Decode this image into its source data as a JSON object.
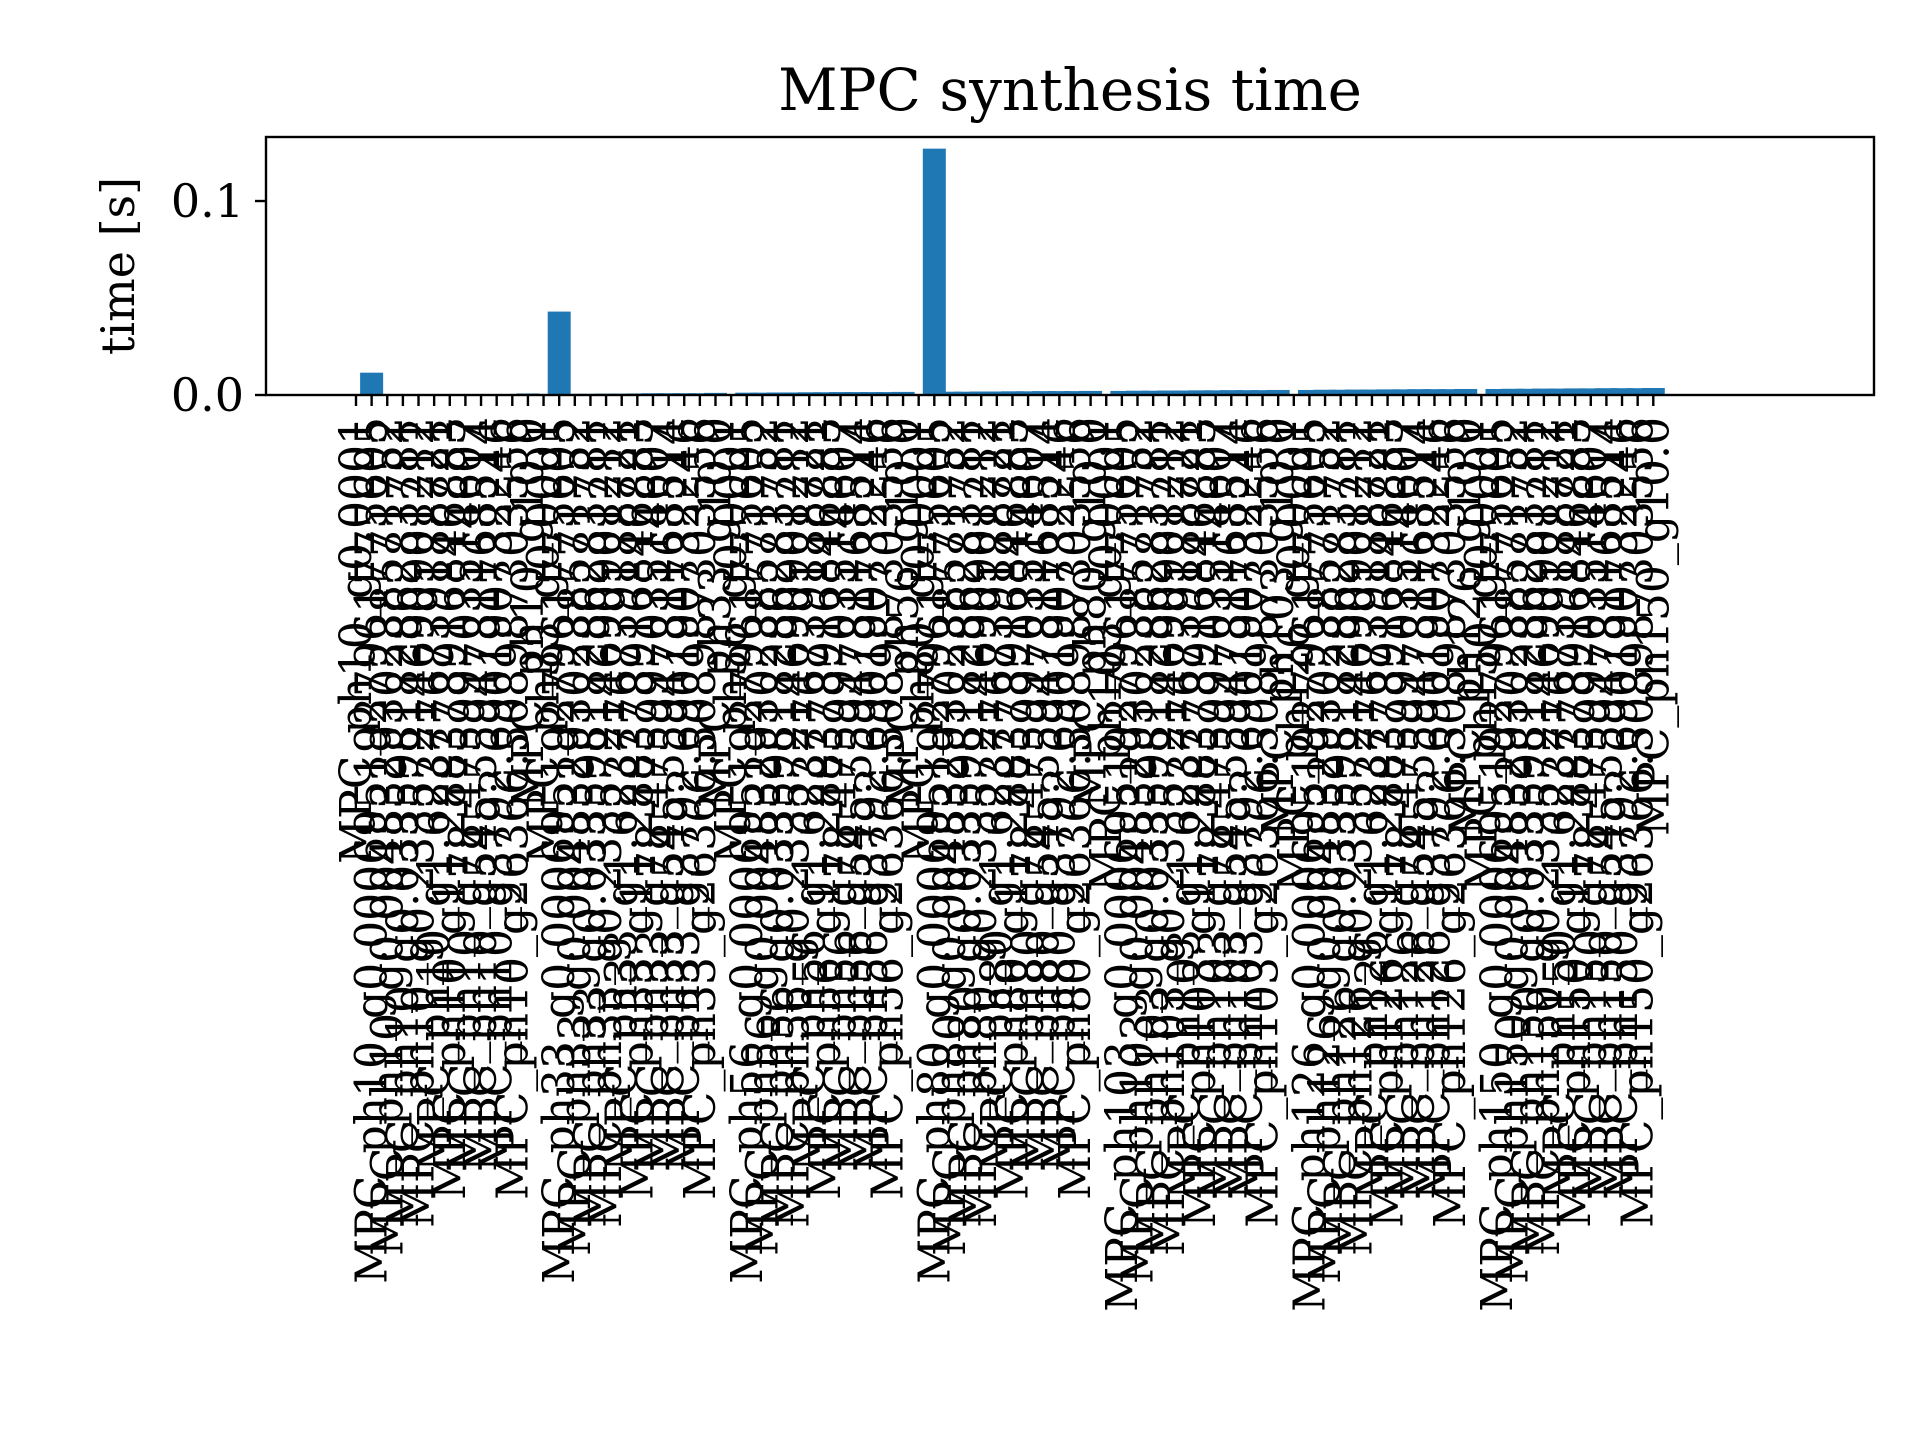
{
  "chart_data": {
    "type": "bar",
    "title": "MPC synthesis time",
    "xlabel": "",
    "ylabel": "time [s]",
    "ylim": [
      0,
      0.133
    ],
    "yticks": [
      0.0,
      0.1
    ],
    "ytick_labels": [
      "0.0",
      "0.1"
    ],
    "grid": false,
    "bar_color": "#1f77b4",
    "categories": [
      "MPC_ph10_g0.0001",
      "MPC_ph10_g0.0006951927961775605",
      "MPC_ph10_g0.004832930238571752",
      "MPC_ph10_g0.03359818286283781",
      "MPC_ph10_g0.23357214690901212",
      "MPC_ph10_g1.623776739188721",
      "MPC_ph10_g11.288378916846883",
      "MPC_ph10_g78.47599703514607",
      "MPC_ph10_g545.5594781168514",
      "MPC_ph10_g3792.690190732246",
      "MPC_ph10_g26366.508987303556",
      "MPC_ph10_g10.0",
      "MPC_ph33_g0.0001",
      "MPC_ph33_g0.0006951927961775605",
      "MPC_ph33_g0.004832930238571752",
      "MPC_ph33_g0.03359818286283781",
      "MPC_ph33_g0.23357214690901212",
      "MPC_ph33_g1.623776739188721",
      "MPC_ph33_g11.288378916846883",
      "MPC_ph33_g78.47599703514607",
      "MPC_ph33_g545.5594781168514",
      "MPC_ph33_g3792.690190732246",
      "MPC_ph33_g26366.508987303556",
      "MPC_ph33_g10.0",
      "MPC_ph56_g0.0001",
      "MPC_ph56_g0.0006951927961775605",
      "MPC_ph56_g0.004832930238571752",
      "MPC_ph56_g0.03359818286283781",
      "MPC_ph56_g0.23357214690901212",
      "MPC_ph56_g1.623776739188721",
      "MPC_ph56_g11.288378916846883",
      "MPC_ph56_g78.47599703514607",
      "MPC_ph56_g545.5594781168514",
      "MPC_ph56_g3792.690190732246",
      "MPC_ph56_g26366.508987303556",
      "MPC_ph56_g10.0",
      "MPC_ph80_g0.0001",
      "MPC_ph80_g0.0006951927961775605",
      "MPC_ph80_g0.004832930238571752",
      "MPC_ph80_g0.03359818286283781",
      "MPC_ph80_g0.23357214690901212",
      "MPC_ph80_g1.623776739188721",
      "MPC_ph80_g11.288378916846883",
      "MPC_ph80_g78.47599703514607",
      "MPC_ph80_g545.5594781168514",
      "MPC_ph80_g3792.690190732246",
      "MPC_ph80_g26366.508987303556",
      "MPC_ph80_g10.0",
      "MPC_ph103_g0.0001",
      "MPC_ph103_g0.0006951927961775605",
      "MPC_ph103_g0.004832930238571752",
      "MPC_ph103_g0.03359818286283781",
      "MPC_ph103_g0.23357214690901212",
      "MPC_ph103_g1.623776739188721",
      "MPC_ph103_g11.288378916846883",
      "MPC_ph103_g78.47599703514607",
      "MPC_ph103_g545.5594781168514",
      "MPC_ph103_g3792.690190732246",
      "MPC_ph103_g26366.508987303556",
      "MPC_ph103_g10.0",
      "MPC_ph126_g0.0001",
      "MPC_ph126_g0.0006951927961775605",
      "MPC_ph126_g0.004832930238571752",
      "MPC_ph126_g0.03359818286283781",
      "MPC_ph126_g0.23357214690901212",
      "MPC_ph126_g1.623776739188721",
      "MPC_ph126_g11.288378916846883",
      "MPC_ph126_g78.47599703514607",
      "MPC_ph126_g545.5594781168514",
      "MPC_ph126_g3792.690190732246",
      "MPC_ph126_g26366.508987303556",
      "MPC_ph126_g10.0",
      "MPC_ph150_g0.0001",
      "MPC_ph150_g0.0006951927961775605",
      "MPC_ph150_g0.004832930238571752",
      "MPC_ph150_g0.03359818286283781",
      "MPC_ph150_g0.23357214690901212",
      "MPC_ph150_g1.623776739188721",
      "MPC_ph150_g11.288378916846883",
      "MPC_ph150_g78.47599703514607",
      "MPC_ph150_g545.5594781168514",
      "MPC_ph150_g3792.690190732246",
      "MPC_ph150_g26366.508987303556",
      "MPC_ph150_g10.0"
    ],
    "values": [
      0.0,
      0.0115,
      0.0003,
      0.0003,
      0.0003,
      0.0003,
      0.0004,
      0.0005,
      0.0005,
      0.0004,
      0.0005,
      0.0008,
      0.0,
      0.043,
      0.0006,
      0.0006,
      0.0007,
      0.0007,
      0.0008,
      0.0009,
      0.0009,
      0.0009,
      0.0009,
      0.0011,
      0.0,
      0.0012,
      0.0012,
      0.0013,
      0.0013,
      0.0014,
      0.0014,
      0.0015,
      0.0015,
      0.0015,
      0.0015,
      0.0016,
      0.0,
      0.127,
      0.0017,
      0.0017,
      0.0018,
      0.0018,
      0.0019,
      0.0019,
      0.002,
      0.002,
      0.002,
      0.0021,
      0.0,
      0.0021,
      0.0022,
      0.0022,
      0.0023,
      0.0023,
      0.0024,
      0.0024,
      0.0025,
      0.0025,
      0.0025,
      0.0026,
      0.0,
      0.0026,
      0.0027,
      0.0027,
      0.0028,
      0.0028,
      0.0029,
      0.0029,
      0.003,
      0.003,
      0.003,
      0.0031,
      0.0,
      0.0031,
      0.0032,
      0.0032,
      0.0033,
      0.0033,
      0.0034,
      0.0034,
      0.0035,
      0.0035,
      0.0035,
      0.0036
    ]
  }
}
